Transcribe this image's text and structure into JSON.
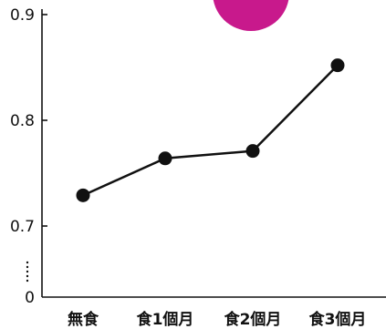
{
  "chart_data": {
    "type": "line",
    "title": "",
    "xlabel": "",
    "ylabel": "",
    "categories": [
      "無食",
      "食1個月",
      "食2個月",
      "食3個月"
    ],
    "series": [
      {
        "values": [
          0.729,
          0.764,
          0.771,
          0.852
        ]
      }
    ],
    "y_ticks": [
      "0.9",
      "0.8",
      "0.7",
      "0"
    ],
    "axis_break": true,
    "grid": false,
    "legend": "none",
    "colors": {
      "line": "#111111",
      "marker": "#111111",
      "decoration": "#c8198c"
    }
  }
}
